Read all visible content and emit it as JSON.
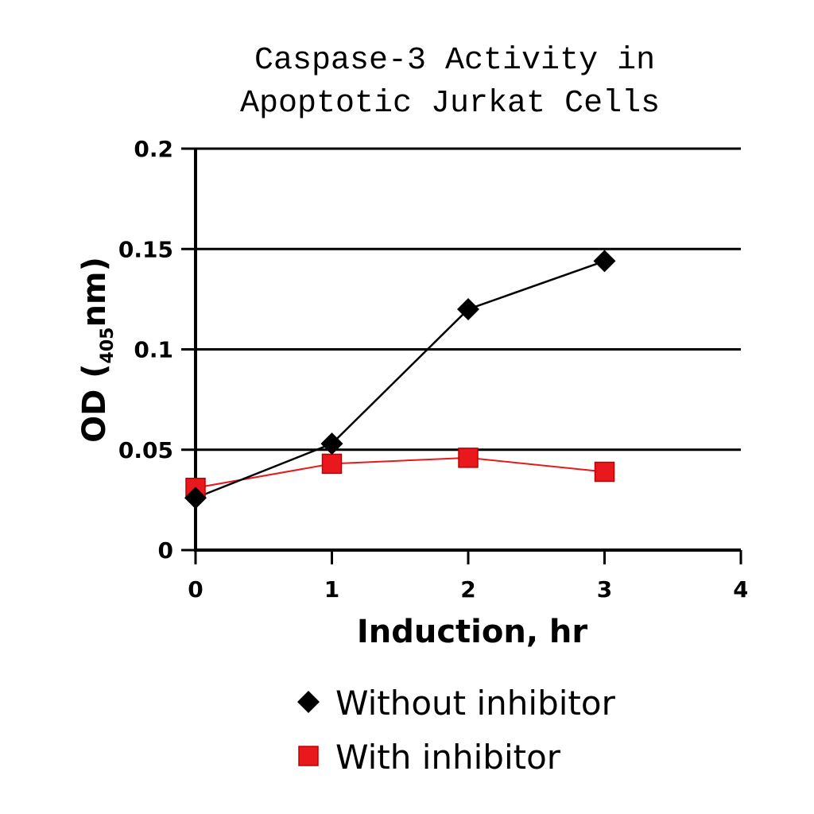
{
  "chart_data": {
    "type": "line",
    "title_lines": [
      "Caspase-3 Activity in",
      "Apoptotic Jurkat Cells"
    ],
    "xlabel": "Induction, hr",
    "ylabel": {
      "main": "OD (",
      "sub": "405",
      "tail": "nm)"
    },
    "xlim": [
      0,
      4
    ],
    "ylim": [
      0,
      0.2
    ],
    "x_ticks": [
      "0",
      "1",
      "2",
      "3",
      "4"
    ],
    "y_ticks": [
      "0",
      "0.05",
      "0.1",
      "0.15",
      "0.2"
    ],
    "grid": true,
    "legend_position": "bottom",
    "series": [
      {
        "name": "Without inhibitor",
        "marker": "diamond",
        "color": "#000000",
        "x": [
          0,
          1,
          2,
          3
        ],
        "y": [
          0.026,
          0.053,
          0.12,
          0.144
        ]
      },
      {
        "name": "With inhibitor",
        "marker": "square",
        "color": "#e8181d",
        "x": [
          0,
          1,
          2,
          3
        ],
        "y": [
          0.031,
          0.043,
          0.046,
          0.039
        ]
      }
    ]
  }
}
